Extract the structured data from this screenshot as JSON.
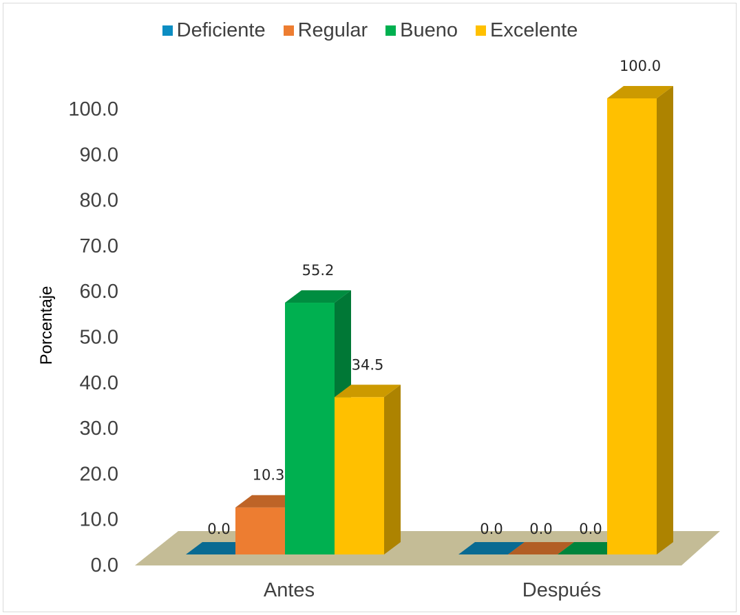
{
  "chart_data": {
    "type": "bar",
    "style": "3d-clustered-column",
    "categories": [
      "Antes",
      "Después"
    ],
    "series": [
      {
        "name": "Deficiente",
        "color": "#0C8DC2",
        "values": [
          0.0,
          0.0
        ],
        "labels": [
          "0.0",
          "0.0"
        ]
      },
      {
        "name": "Regular",
        "color": "#ED7D31",
        "values": [
          10.3,
          0.0
        ],
        "labels": [
          "10.3",
          "0.0"
        ]
      },
      {
        "name": "Bueno",
        "color": "#00B050",
        "values": [
          55.2,
          0.0
        ],
        "labels": [
          "55.2",
          "0.0"
        ]
      },
      {
        "name": "Excelente",
        "color": "#FFC000",
        "values": [
          34.5,
          100.0
        ],
        "labels": [
          "34.5",
          "100.0"
        ]
      }
    ],
    "ylabel": "Porcentaje",
    "ylim": [
      0,
      100
    ],
    "yticks": [
      "0.0",
      "10.0",
      "20.0",
      "30.0",
      "40.0",
      "50.0",
      "60.0",
      "70.0",
      "80.0",
      "90.0",
      "100.0"
    ],
    "legend_position": "top",
    "grid": false,
    "floor_color": "#C4BC96"
  }
}
